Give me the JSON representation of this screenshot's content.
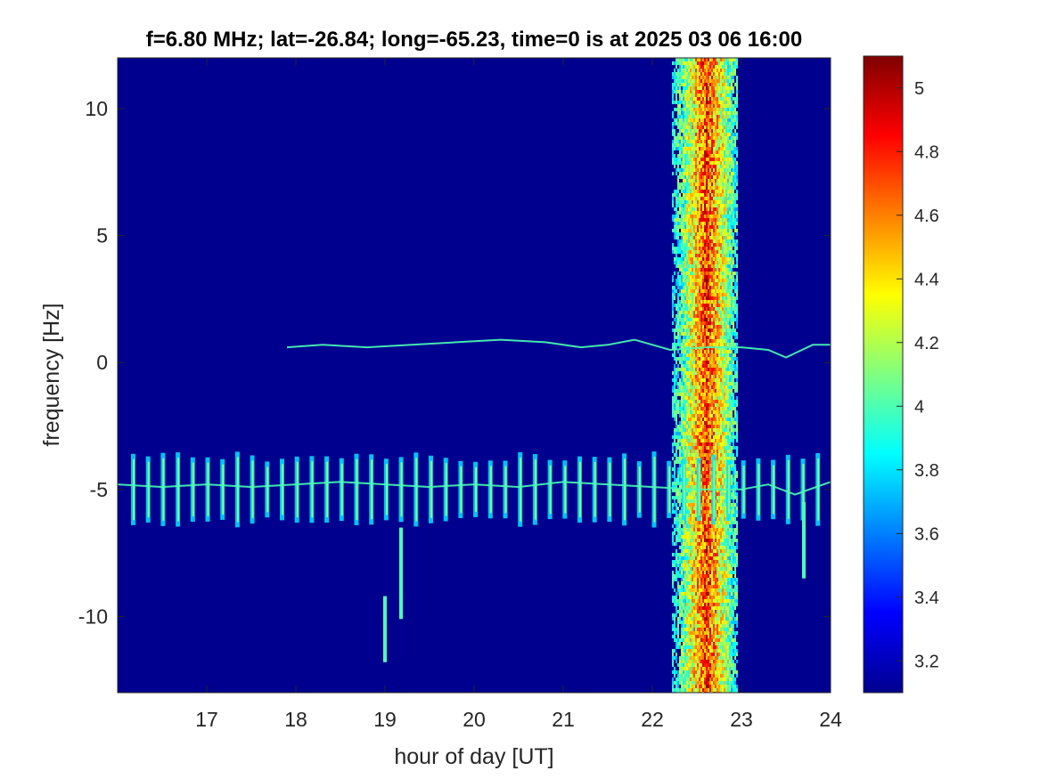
{
  "chart_data": {
    "type": "heatmap",
    "title": "f=6.80 MHz;  lat=-26.84; long=-65.23, time=0 is at 2025 03 06 16:00",
    "xlabel": "hour of day [UT]",
    "ylabel": "frequency [Hz]",
    "xlim": [
      16.0,
      24.0
    ],
    "ylim": [
      -13.0,
      12.0
    ],
    "x_ticks": [
      17,
      18,
      19,
      20,
      21,
      22,
      23,
      24
    ],
    "x_tick_labels": [
      "17",
      "18",
      "19",
      "20",
      "21",
      "22",
      "23",
      "24"
    ],
    "y_ticks": [
      10,
      5,
      0,
      -5,
      -10
    ],
    "y_tick_labels": [
      "10",
      "5",
      "0",
      "-5",
      "-10"
    ],
    "colorbar": {
      "range": [
        3.1,
        5.1
      ],
      "ticks": [
        5,
        4.8,
        4.6,
        4.4,
        4.2,
        4,
        3.8,
        3.6,
        3.4,
        3.2
      ],
      "tick_labels": [
        "5",
        "4.8",
        "4.6",
        "4.4",
        "4.2",
        "4",
        "3.8",
        "3.6",
        "3.4",
        "3.2"
      ],
      "colormap": "jet"
    },
    "background_color": "#00008f",
    "features": {
      "periodic_pulses": {
        "start_hour": 16.18,
        "period_hours": 0.167,
        "count": 47,
        "center_freq_hz": -5.0,
        "half_width_hz": 1.2
      },
      "doppler_trace_upper": {
        "hours": [
          17.9,
          18.3,
          18.8,
          19.3,
          19.8,
          20.3,
          20.8,
          21.2,
          21.5,
          21.8,
          22.2,
          22.6,
          23.0,
          23.3,
          23.5,
          23.8,
          24.0
        ],
        "freq_hz": [
          0.6,
          0.7,
          0.6,
          0.7,
          0.8,
          0.9,
          0.8,
          0.6,
          0.7,
          0.9,
          0.5,
          0.6,
          0.6,
          0.5,
          0.2,
          0.7,
          0.7
        ]
      },
      "doppler_trace_lower": {
        "hours": [
          16.0,
          16.5,
          17.0,
          17.5,
          18.0,
          18.5,
          19.0,
          19.5,
          20.0,
          20.5,
          21.0,
          21.5,
          22.0,
          22.5,
          23.0,
          23.3,
          23.6,
          24.0
        ],
        "freq_hz": [
          -4.8,
          -4.9,
          -4.8,
          -4.9,
          -4.8,
          -4.7,
          -4.8,
          -4.9,
          -4.8,
          -4.9,
          -4.7,
          -4.8,
          -4.9,
          -5.0,
          -5.0,
          -4.8,
          -5.2,
          -4.7
        ]
      },
      "broadband_interference": [
        {
          "hour_start": 22.22,
          "hour_end": 22.95,
          "peak_hour": 22.6
        }
      ],
      "isolated_streaks": [
        {
          "hour": 19.0,
          "freq_hz": -10.5,
          "half_width_hz": 1.3
        },
        {
          "hour": 19.18,
          "freq_hz": -8.3,
          "half_width_hz": 1.8
        },
        {
          "hour": 23.7,
          "freq_hz": -7.0,
          "half_width_hz": 1.5
        }
      ]
    }
  }
}
